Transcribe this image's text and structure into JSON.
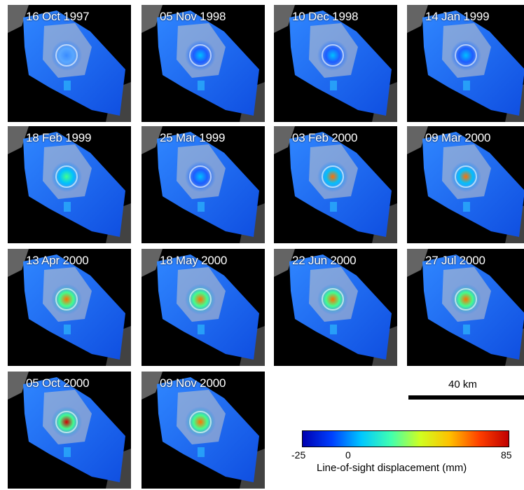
{
  "panels": [
    {
      "date": "16 Oct 1997",
      "level": 0.0
    },
    {
      "date": "05 Nov 1998",
      "level": 0.35
    },
    {
      "date": "10 Dec 1998",
      "level": 0.35
    },
    {
      "date": "14 Jan 1999",
      "level": 0.3
    },
    {
      "date": "18 Feb 1999",
      "level": 0.5
    },
    {
      "date": "25 Mar 1999",
      "level": 0.45
    },
    {
      "date": "03 Feb 2000",
      "level": 0.85
    },
    {
      "date": "09 Mar 2000",
      "level": 0.85
    },
    {
      "date": "13 Apr 2000",
      "level": 0.95
    },
    {
      "date": "18 May 2000",
      "level": 0.95
    },
    {
      "date": "22 Jun 2000",
      "level": 0.95
    },
    {
      "date": "27 Jul 2000",
      "level": 0.95
    },
    {
      "date": "05 Oct 2000",
      "level": 1.0
    },
    {
      "date": "09 Nov 2000",
      "level": 0.95
    }
  ],
  "scale_bar": {
    "label": "40 km"
  },
  "colorbar": {
    "min_label": "-25",
    "zero_label": "0",
    "max_label": "85",
    "title": "Line-of-sight displacement (mm)",
    "colors": [
      "#0000b0",
      "#0040ff",
      "#00c8ff",
      "#40ffb0",
      "#d0ff20",
      "#ffc000",
      "#ff4000",
      "#c00000"
    ]
  }
}
